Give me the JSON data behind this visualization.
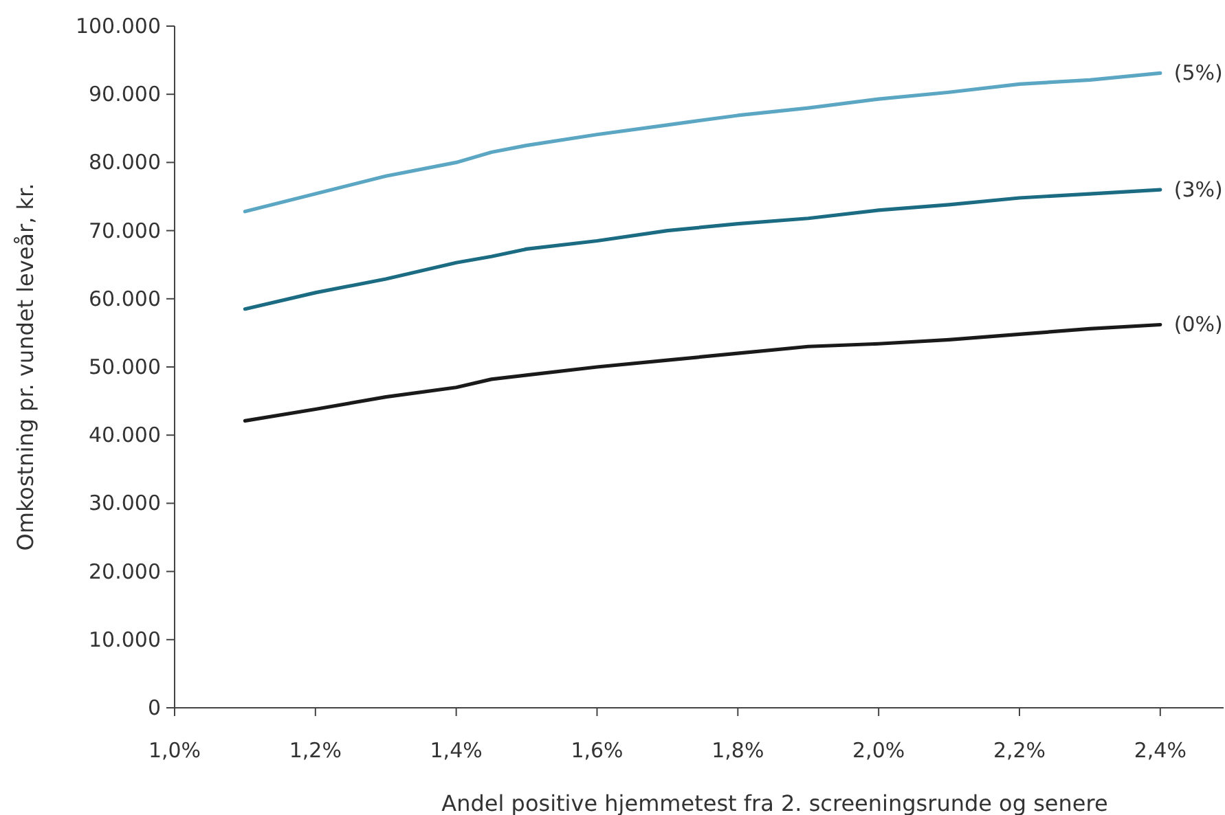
{
  "chart_data": {
    "type": "line",
    "xlabel": "Andel positive hjemmetest fra 2. screeningsrunde og senere",
    "ylabel": "Omkostning pr. vundet leveår, kr.",
    "x": [
      1.1,
      1.2,
      1.3,
      1.4,
      1.45,
      1.5,
      1.6,
      1.7,
      1.8,
      1.9,
      2.0,
      2.1,
      2.2,
      2.3,
      2.4
    ],
    "series": [
      {
        "name": "(5%)",
        "color": "#5ba6c2",
        "values": [
          72800,
          75400,
          78000,
          80000,
          81500,
          82500,
          84100,
          85500,
          86900,
          88000,
          89300,
          90300,
          91500,
          92100,
          93100
        ]
      },
      {
        "name": "(3%)",
        "color": "#1b6b82",
        "values": [
          58500,
          60900,
          62900,
          65300,
          66200,
          67300,
          68500,
          70000,
          71000,
          71800,
          73000,
          73800,
          74800,
          75400,
          76000
        ]
      },
      {
        "name": "(0%)",
        "color": "#1a1a1a",
        "values": [
          42100,
          43800,
          45600,
          47000,
          48200,
          48800,
          50000,
          51000,
          52000,
          53000,
          53400,
          54000,
          54800,
          55600,
          56200
        ]
      }
    ],
    "xlim": [
      1.0,
      2.49
    ],
    "xticks": [
      {
        "value": 1.0,
        "label": "1,0%"
      },
      {
        "value": 1.2,
        "label": "1,2%"
      },
      {
        "value": 1.4,
        "label": "1,4%"
      },
      {
        "value": 1.6,
        "label": "1,6%"
      },
      {
        "value": 1.8,
        "label": "1,8%"
      },
      {
        "value": 2.0,
        "label": "2,0%"
      },
      {
        "value": 2.2,
        "label": "2,2%"
      },
      {
        "value": 2.4,
        "label": "2,4%"
      }
    ],
    "ylim": [
      0,
      100000
    ],
    "yticks": [
      0,
      {
        "value": 10000,
        "label": "10.000"
      },
      {
        "value": 20000,
        "label": "20.000"
      },
      {
        "value": 30000,
        "label": "30.000"
      },
      {
        "value": 40000,
        "label": "40.000"
      },
      {
        "value": 50000,
        "label": "50.000"
      },
      {
        "value": 60000,
        "label": "60.000"
      },
      {
        "value": 70000,
        "label": "70.000"
      },
      {
        "value": 80000,
        "label": "80.000"
      },
      {
        "value": 90000,
        "label": "90.000"
      },
      {
        "value": 100000,
        "label": "100.000"
      }
    ],
    "grid": false,
    "legend": false,
    "marker": "none",
    "line_style": "solid"
  }
}
